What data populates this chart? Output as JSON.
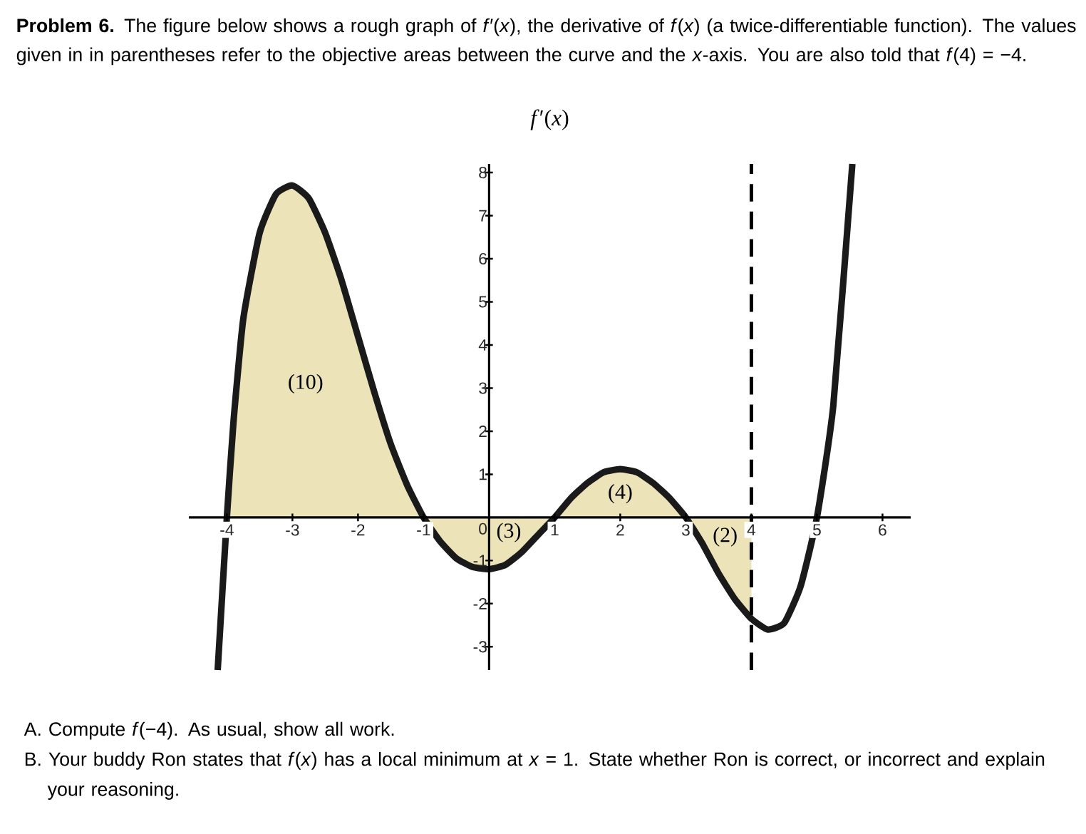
{
  "chart_data": {
    "type": "line",
    "title": "*f*′(*x*)",
    "xlim": [
      -4.58,
      6.43
    ],
    "ylim": [
      -3.54,
      8.2
    ],
    "xticks": [
      -4,
      -3,
      -2,
      -1,
      0,
      1,
      2,
      3,
      4,
      5,
      6
    ],
    "yticks": [
      -3,
      -2,
      -1,
      1,
      2,
      3,
      4,
      5,
      6,
      7,
      8
    ],
    "marker": "none",
    "line_style": "solid",
    "series": [
      {
        "type": "area",
        "color": "#ede3b9",
        "x": [
          -4.0,
          -3.9,
          -3.75,
          -3.5,
          -3.25,
          -3.0,
          -2.75,
          -2.5,
          -2.25,
          -2.0,
          -1.75,
          -1.5,
          -1.25,
          -1.0,
          -0.75,
          -0.5,
          -0.25,
          0.0,
          0.25,
          0.5,
          0.75,
          1.0,
          1.25,
          1.5,
          1.75,
          2.0,
          2.25,
          2.5,
          2.75,
          3.0,
          3.25,
          3.5,
          3.75,
          4.0
        ],
        "values": [
          0,
          2.2,
          4.6,
          6.6,
          7.5,
          7.7,
          7.4,
          6.6,
          5.5,
          4.2,
          2.9,
          1.7,
          0.75,
          0,
          -0.55,
          -0.95,
          -1.15,
          -1.2,
          -1.1,
          -0.8,
          -0.4,
          0,
          0.45,
          0.8,
          1.05,
          1.12,
          1.05,
          0.8,
          0.45,
          0,
          -0.6,
          -1.3,
          -1.9,
          -2.35
        ]
      },
      {
        "type": "line",
        "color": "#1a1a1a",
        "x": [
          -4.14,
          -4.0,
          -3.9,
          -3.75,
          -3.5,
          -3.25,
          -3.0,
          -2.75,
          -2.5,
          -2.25,
          -2.0,
          -1.75,
          -1.5,
          -1.25,
          -1.0,
          -0.75,
          -0.5,
          -0.25,
          0.0,
          0.25,
          0.5,
          0.75,
          1.0,
          1.25,
          1.5,
          1.75,
          2.0,
          2.25,
          2.5,
          2.75,
          3.0,
          3.25,
          3.5,
          3.75,
          4.0,
          4.25,
          4.5,
          4.75,
          5.0,
          5.25,
          5.54
        ],
        "values": [
          -3.54,
          0,
          2.2,
          4.6,
          6.6,
          7.5,
          7.7,
          7.4,
          6.6,
          5.5,
          4.2,
          2.9,
          1.7,
          0.75,
          0,
          -0.55,
          -0.95,
          -1.15,
          -1.2,
          -1.1,
          -0.8,
          -0.4,
          0,
          0.45,
          0.8,
          1.05,
          1.12,
          1.05,
          0.8,
          0.45,
          0,
          -0.6,
          -1.3,
          -1.9,
          -2.35,
          -2.6,
          -2.45,
          -1.6,
          0,
          2.6,
          8.2
        ]
      }
    ],
    "ref_lines": [
      {
        "axis": "x",
        "value": 4,
        "line_style": "dashed",
        "color": "#000000"
      }
    ],
    "annotations": [
      "**Problem 6.** The figure below shows a rough graph of *f*′(*x*), the derivative of *f*(*x*) (a twice-differentiable function). The values given in in parentheses refer to the objective areas between the curve and the *x*-axis. You are also told that *f*(4) = −4.",
      "(10)",
      "(3)",
      "(4)",
      "(2)",
      "A. Compute *f*(−4). As usual, show all work.",
      "B. Your buddy Ron states that *f*(*x*) has a local minimum at *x* = 1. State whether Ron is correct, or incorrect and explain your reasoning."
    ]
  }
}
